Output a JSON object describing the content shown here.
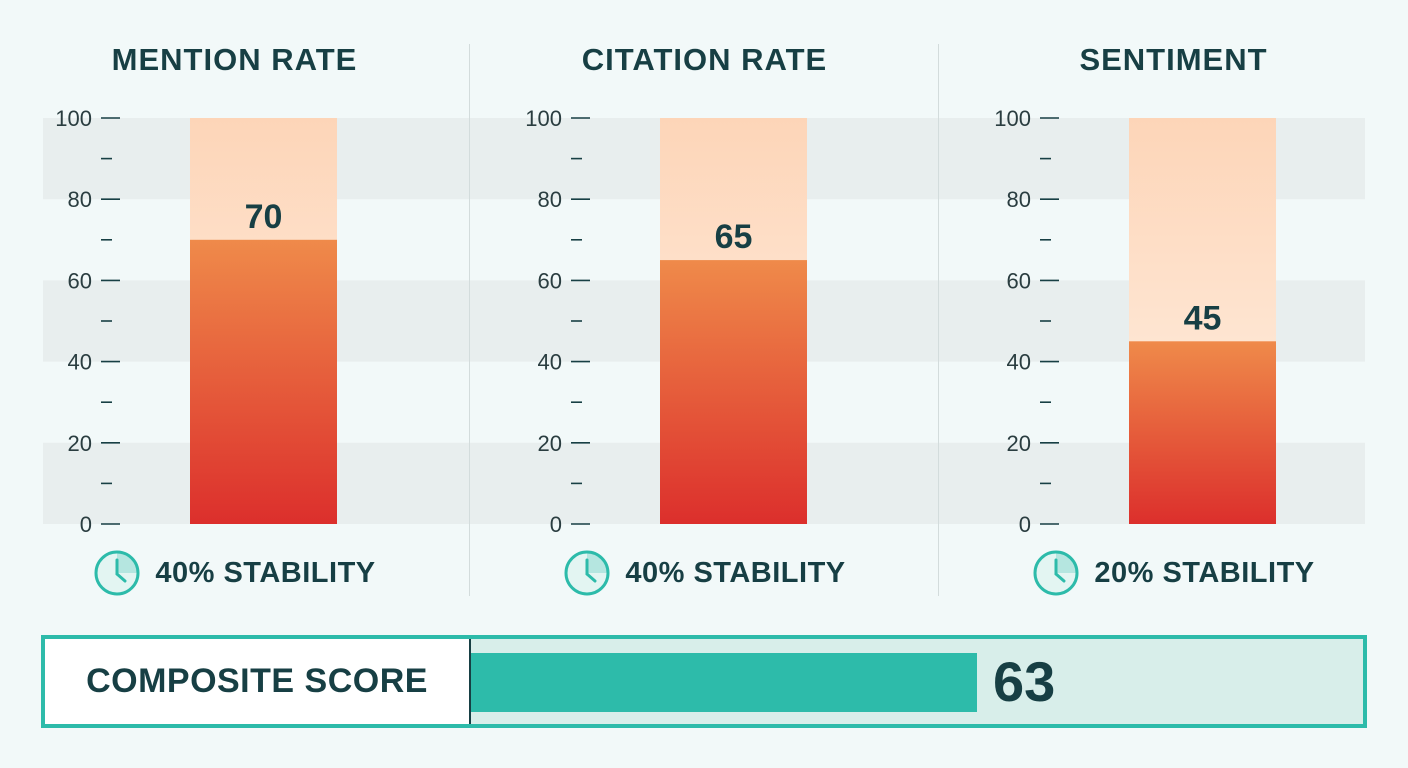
{
  "colors": {
    "bar_top": "#ef8a4a",
    "bar_bottom": "#dc2f2c",
    "track_top": "#fdd5b8",
    "track_bottom": "#fff2e6",
    "accent": "#2dbbaa",
    "text": "#173f44"
  },
  "icons": {
    "stability": "clock-icon"
  },
  "chart_data": [
    {
      "type": "bar",
      "title": "MENTION RATE",
      "categories": [
        ""
      ],
      "values": [
        70
      ],
      "data_labels": [
        "70"
      ],
      "ylim": [
        0,
        100
      ],
      "y_ticks": [
        0,
        20,
        40,
        60,
        80,
        100
      ],
      "y_tick_labels": [
        "0",
        "20",
        "40",
        "60",
        "80",
        "100"
      ],
      "grid": "alternating horizontal bands",
      "stability": "40% STABILITY"
    },
    {
      "type": "bar",
      "title": "CITATION RATE",
      "categories": [
        ""
      ],
      "values": [
        65
      ],
      "data_labels": [
        "65"
      ],
      "ylim": [
        0,
        100
      ],
      "y_ticks": [
        0,
        20,
        40,
        60,
        80,
        100
      ],
      "y_tick_labels": [
        "0",
        "20",
        "40",
        "60",
        "80",
        "100"
      ],
      "grid": "alternating horizontal bands",
      "stability": "40% STABILITY"
    },
    {
      "type": "bar",
      "title": "SENTIMENT",
      "categories": [
        ""
      ],
      "values": [
        45
      ],
      "data_labels": [
        "45"
      ],
      "ylim": [
        0,
        100
      ],
      "y_ticks": [
        0,
        20,
        40,
        60,
        80,
        100
      ],
      "y_tick_labels": [
        "0",
        "20",
        "40",
        "60",
        "80",
        "100"
      ],
      "grid": "alternating horizontal bands",
      "stability": "20% STABILITY"
    }
  ],
  "composite": {
    "label": "COMPOSITE SCORE",
    "value": 63,
    "value_text": "63",
    "max": 100
  }
}
